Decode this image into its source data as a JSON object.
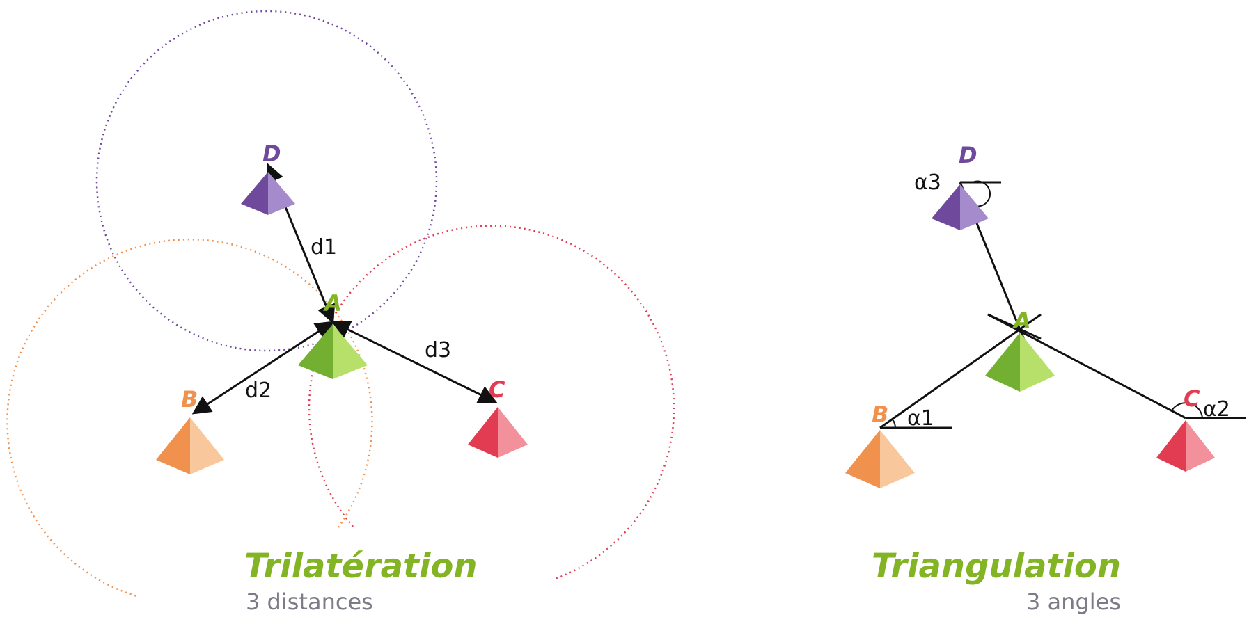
{
  "colors": {
    "purple": "#6f4a9c",
    "purple_light": "#a58bcb",
    "orange": "#f0914e",
    "orange_light": "#f8c79c",
    "red": "#e23c52",
    "red_light": "#f2909c",
    "green": "#73b032",
    "green_light": "#b7e06a",
    "title_green": "#82b424",
    "subtitle_gray": "#7c7c86",
    "line": "#111111"
  },
  "trilateration": {
    "title": "Trilatération",
    "subtitle": "3 distances",
    "points": {
      "A": "A",
      "B": "B",
      "C": "C",
      "D": "D"
    },
    "distances": {
      "d1": "d1",
      "d2": "d2",
      "d3": "d3"
    }
  },
  "triangulation": {
    "title": "Triangulation",
    "subtitle": "3 angles",
    "points": {
      "A": "A",
      "B": "B",
      "C": "C",
      "D": "D"
    },
    "angles": {
      "a1": "α1",
      "a2": "α2",
      "a3": "α3"
    }
  }
}
